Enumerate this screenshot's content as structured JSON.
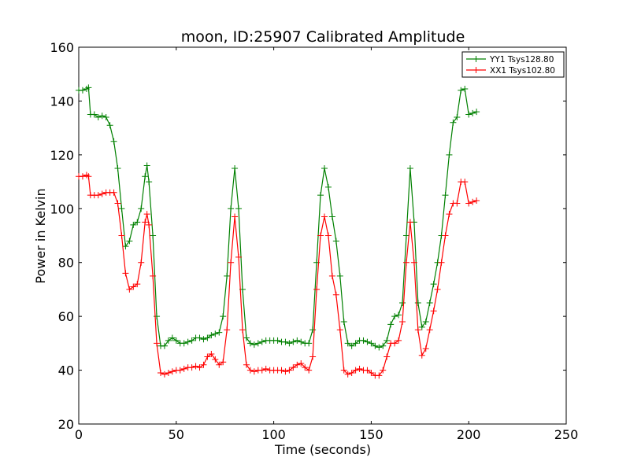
{
  "chart_data": {
    "type": "line",
    "title": "moon, ID:25907 Calibrated Amplitude",
    "xlabel": "Time (seconds)",
    "ylabel": "Power in Kelvin",
    "xlim": [
      0,
      250
    ],
    "ylim": [
      20,
      160
    ],
    "xticks": [
      "0",
      "50",
      "100",
      "150",
      "200",
      "250"
    ],
    "yticks": [
      "20",
      "40",
      "60",
      "80",
      "100",
      "120",
      "140",
      "160"
    ],
    "grid": false,
    "legend_position": "top-right",
    "marker": "+",
    "series": [
      {
        "name": "YY1 Tsys128.80",
        "color": "#008000",
        "points": [
          [
            0,
            144
          ],
          [
            2,
            144
          ],
          [
            4,
            144.5
          ],
          [
            5,
            145
          ],
          [
            6,
            135
          ],
          [
            8,
            135
          ],
          [
            10,
            134
          ],
          [
            12,
            134.5
          ],
          [
            14,
            134
          ],
          [
            16,
            131
          ],
          [
            18,
            125
          ],
          [
            20,
            115
          ],
          [
            22,
            100
          ],
          [
            24,
            86
          ],
          [
            26,
            88
          ],
          [
            28,
            94
          ],
          [
            30,
            95
          ],
          [
            32,
            100
          ],
          [
            34,
            112
          ],
          [
            35,
            116
          ],
          [
            36,
            110
          ],
          [
            38,
            90
          ],
          [
            40,
            60
          ],
          [
            42,
            49
          ],
          [
            44,
            49
          ],
          [
            46,
            51
          ],
          [
            48,
            52
          ],
          [
            50,
            51
          ],
          [
            52,
            50
          ],
          [
            54,
            50
          ],
          [
            56,
            50.5
          ],
          [
            58,
            51
          ],
          [
            60,
            52
          ],
          [
            62,
            52
          ],
          [
            64,
            51.5
          ],
          [
            66,
            52
          ],
          [
            68,
            53
          ],
          [
            70,
            53.5
          ],
          [
            72,
            54
          ],
          [
            74,
            60
          ],
          [
            76,
            75
          ],
          [
            78,
            100
          ],
          [
            80,
            115
          ],
          [
            82,
            100
          ],
          [
            84,
            70
          ],
          [
            86,
            52
          ],
          [
            88,
            50
          ],
          [
            90,
            49.5
          ],
          [
            92,
            50
          ],
          [
            94,
            50.5
          ],
          [
            96,
            51
          ],
          [
            98,
            51
          ],
          [
            100,
            51
          ],
          [
            102,
            51
          ],
          [
            104,
            50.5
          ],
          [
            106,
            50.5
          ],
          [
            108,
            50
          ],
          [
            110,
            50.5
          ],
          [
            112,
            51
          ],
          [
            114,
            50.5
          ],
          [
            116,
            50
          ],
          [
            118,
            50
          ],
          [
            120,
            55
          ],
          [
            122,
            80
          ],
          [
            124,
            105
          ],
          [
            126,
            115
          ],
          [
            128,
            108
          ],
          [
            130,
            97
          ],
          [
            132,
            88
          ],
          [
            134,
            75
          ],
          [
            136,
            58
          ],
          [
            138,
            50
          ],
          [
            140,
            49
          ],
          [
            142,
            50
          ],
          [
            144,
            51
          ],
          [
            146,
            51
          ],
          [
            148,
            50.5
          ],
          [
            150,
            50
          ],
          [
            152,
            49
          ],
          [
            154,
            48.5
          ],
          [
            156,
            49
          ],
          [
            158,
            51
          ],
          [
            160,
            57
          ],
          [
            162,
            60
          ],
          [
            164,
            60.5
          ],
          [
            166,
            65
          ],
          [
            168,
            90
          ],
          [
            170,
            115
          ],
          [
            172,
            95
          ],
          [
            174,
            65
          ],
          [
            176,
            56
          ],
          [
            178,
            58
          ],
          [
            180,
            65
          ],
          [
            182,
            72
          ],
          [
            184,
            80
          ],
          [
            186,
            90
          ],
          [
            188,
            105
          ],
          [
            190,
            120
          ],
          [
            192,
            132
          ],
          [
            194,
            134
          ],
          [
            196,
            144
          ],
          [
            198,
            144.5
          ],
          [
            200,
            135
          ],
          [
            202,
            135.5
          ],
          [
            204,
            136
          ]
        ]
      },
      {
        "name": "XX1 Tsys102.80",
        "color": "#ff0000",
        "points": [
          [
            0,
            112
          ],
          [
            2,
            112
          ],
          [
            4,
            112.5
          ],
          [
            5,
            112
          ],
          [
            6,
            105
          ],
          [
            8,
            105
          ],
          [
            10,
            105
          ],
          [
            12,
            105.5
          ],
          [
            14,
            106
          ],
          [
            16,
            106
          ],
          [
            18,
            106
          ],
          [
            20,
            102
          ],
          [
            22,
            90
          ],
          [
            24,
            76
          ],
          [
            26,
            70
          ],
          [
            28,
            71
          ],
          [
            30,
            72
          ],
          [
            32,
            80
          ],
          [
            34,
            95
          ],
          [
            35,
            98
          ],
          [
            36,
            94
          ],
          [
            38,
            75
          ],
          [
            40,
            50
          ],
          [
            42,
            39
          ],
          [
            44,
            38.5
          ],
          [
            46,
            39
          ],
          [
            48,
            39.5
          ],
          [
            50,
            40
          ],
          [
            52,
            40
          ],
          [
            54,
            40.5
          ],
          [
            56,
            41
          ],
          [
            58,
            41
          ],
          [
            60,
            41.5
          ],
          [
            62,
            41
          ],
          [
            64,
            42
          ],
          [
            66,
            45
          ],
          [
            68,
            46
          ],
          [
            70,
            44
          ],
          [
            72,
            42
          ],
          [
            74,
            43
          ],
          [
            76,
            55
          ],
          [
            78,
            80
          ],
          [
            80,
            97
          ],
          [
            82,
            82
          ],
          [
            84,
            55
          ],
          [
            86,
            42
          ],
          [
            88,
            40
          ],
          [
            90,
            39.5
          ],
          [
            92,
            40
          ],
          [
            94,
            40
          ],
          [
            96,
            40.5
          ],
          [
            98,
            40
          ],
          [
            100,
            40
          ],
          [
            102,
            40
          ],
          [
            104,
            40
          ],
          [
            106,
            39.5
          ],
          [
            108,
            40
          ],
          [
            110,
            41
          ],
          [
            112,
            42
          ],
          [
            114,
            42.5
          ],
          [
            116,
            41
          ],
          [
            118,
            40
          ],
          [
            120,
            45
          ],
          [
            122,
            70
          ],
          [
            124,
            90
          ],
          [
            126,
            97
          ],
          [
            128,
            90
          ],
          [
            130,
            75
          ],
          [
            132,
            68
          ],
          [
            134,
            55
          ],
          [
            136,
            40
          ],
          [
            138,
            38.5
          ],
          [
            140,
            39
          ],
          [
            142,
            40
          ],
          [
            144,
            40.5
          ],
          [
            146,
            40
          ],
          [
            148,
            40
          ],
          [
            150,
            39
          ],
          [
            152,
            38
          ],
          [
            154,
            38
          ],
          [
            156,
            40
          ],
          [
            158,
            45
          ],
          [
            160,
            50
          ],
          [
            162,
            50
          ],
          [
            164,
            51
          ],
          [
            166,
            58
          ],
          [
            168,
            80
          ],
          [
            170,
            95
          ],
          [
            172,
            80
          ],
          [
            174,
            55
          ],
          [
            176,
            45.5
          ],
          [
            178,
            48
          ],
          [
            180,
            55
          ],
          [
            182,
            62
          ],
          [
            184,
            70
          ],
          [
            186,
            80
          ],
          [
            188,
            90
          ],
          [
            190,
            98
          ],
          [
            192,
            102
          ],
          [
            194,
            102
          ],
          [
            196,
            110
          ],
          [
            198,
            110
          ],
          [
            200,
            102
          ],
          [
            202,
            102.5
          ],
          [
            204,
            103
          ]
        ]
      }
    ]
  }
}
